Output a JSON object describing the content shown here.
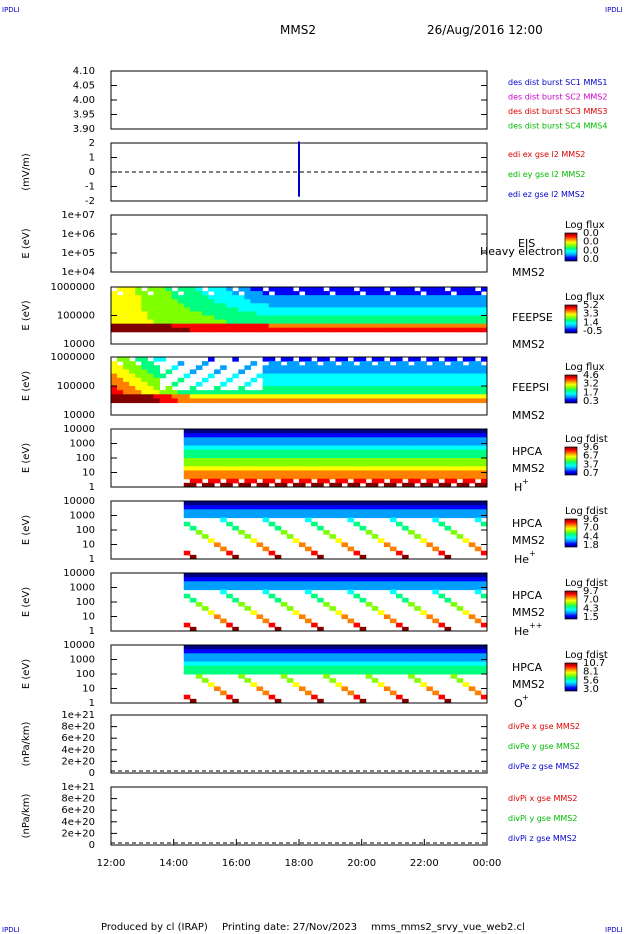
{
  "corner_labels": {
    "top_left": "IPDLI",
    "top_right": "IPDLI",
    "bottom_left": "IPDLI",
    "bottom_right": "IPDLI"
  },
  "header": {
    "mission": "MMS2",
    "datetime": "26/Aug/2016 12:00"
  },
  "footer": {
    "produced_by": "Produced by cl (IRAP)",
    "print_date": "Printing date: 27/Nov/2023",
    "script": "mms_mms2_srvy_vue_web2.cl"
  },
  "colors": {
    "blue": "#0000cc",
    "red": "#dd0000",
    "green": "#00bb00",
    "magenta": "#cc00cc",
    "dashed": "#000000"
  },
  "colorbar_stops": [
    "#000080",
    "#0000ff",
    "#00a0ff",
    "#00ffff",
    "#00ff80",
    "#80ff00",
    "#ffff00",
    "#ff8000",
    "#ff0000",
    "#800000"
  ],
  "chart_data": [
    {
      "id": "panel-ephem",
      "type": "line",
      "ylabel": "",
      "ytick_labels": [
        "4.10",
        "4.05",
        "4.00",
        "3.95",
        "3.90"
      ],
      "ylim": [
        3.9,
        4.1
      ],
      "legend": [
        {
          "text": "des dist burst SC1 MMS1",
          "color": "#0000cc"
        },
        {
          "text": "des dist burst SC2 MMS2",
          "color": "#cc00cc"
        },
        {
          "text": "des dist burst SC3 MMS3",
          "color": "#dd0000"
        },
        {
          "text": "des dist burst SC4 MMS4",
          "color": "#00bb00"
        }
      ],
      "series": []
    },
    {
      "id": "panel-efield",
      "type": "line",
      "ylabel": "(mV/m)",
      "ytick_labels": [
        "2",
        "1",
        "0",
        "-1",
        "-2"
      ],
      "ylim": [
        -2,
        2
      ],
      "zero_line": true,
      "legend": [
        {
          "text": "edi ex gse l2 MMS2",
          "color": "#dd0000"
        },
        {
          "text": "edi ey gse l2 MMS2",
          "color": "#00bb00"
        },
        {
          "text": "edi ez gse l2 MMS2",
          "color": "#0000cc"
        }
      ],
      "series": [
        {
          "x_hours": 18.0,
          "ymin": -1.7,
          "ymax": 2.1,
          "color": "#0000cc"
        }
      ]
    },
    {
      "id": "panel-eis",
      "type": "heatmap",
      "ylabel": "E (eV)",
      "ytick_labels": [
        "1e+07",
        "1e+06",
        "1e+05",
        "1e+04"
      ],
      "instrument": "EIS",
      "overlay_text": "Heavy electron to",
      "spacecraft": "MMS2",
      "colorbar_title": "Log flux",
      "colorbar_ticks": [
        "0.0",
        "0.0",
        "0.0",
        "0.0"
      ]
    },
    {
      "id": "panel-feepse",
      "type": "heatmap",
      "ylabel": "E (eV)",
      "ytick_labels": [
        "1000000",
        "100000",
        "10000"
      ],
      "instrument": "FEEPSE",
      "spacecraft": "MMS2",
      "colorbar_title": "Log flux",
      "colorbar_ticks": [
        "5.2",
        "3.3",
        "1.4",
        "-0.5"
      ]
    },
    {
      "id": "panel-feepsi",
      "type": "heatmap",
      "ylabel": "E (eV)",
      "ytick_labels": [
        "1000000",
        "100000",
        "10000"
      ],
      "instrument": "FEEPSI",
      "spacecraft": "MMS2",
      "colorbar_title": "Log flux",
      "colorbar_ticks": [
        "4.6",
        "3.2",
        "1.7",
        "0.3"
      ]
    },
    {
      "id": "panel-hpca-h",
      "type": "heatmap",
      "ylabel": "E (eV)",
      "ytick_labels": [
        "10000",
        "1000",
        "100",
        "10",
        "1"
      ],
      "instrument": "HPCA",
      "spacecraft": "MMS2",
      "species": "H",
      "species_charge": "+",
      "colorbar_title": "Log fdist",
      "colorbar_ticks": [
        "9.6",
        "6.7",
        "3.7",
        "0.7"
      ]
    },
    {
      "id": "panel-hpca-he",
      "type": "heatmap",
      "ylabel": "E (eV)",
      "ytick_labels": [
        "10000",
        "1000",
        "100",
        "10",
        "1"
      ],
      "instrument": "HPCA",
      "spacecraft": "MMS2",
      "species": "He",
      "species_charge": "+",
      "colorbar_title": "Log fdist",
      "colorbar_ticks": [
        "9.6",
        "7.0",
        "4.4",
        "1.8"
      ]
    },
    {
      "id": "panel-hpca-he2",
      "type": "heatmap",
      "ylabel": "E (eV)",
      "ytick_labels": [
        "10000",
        "1000",
        "100",
        "10",
        "1"
      ],
      "instrument": "HPCA",
      "spacecraft": "MMS2",
      "species": "He",
      "species_charge": "++",
      "colorbar_title": "Log fdist",
      "colorbar_ticks": [
        "9.7",
        "7.0",
        "4.3",
        "1.5"
      ]
    },
    {
      "id": "panel-hpca-o",
      "type": "heatmap",
      "ylabel": "E (eV)",
      "ytick_labels": [
        "10000",
        "1000",
        "100",
        "10",
        "1"
      ],
      "instrument": "HPCA",
      "spacecraft": "MMS2",
      "species": "O",
      "species_charge": "+",
      "colorbar_title": "Log fdist",
      "colorbar_ticks": [
        "10.7",
        "8.1",
        "5.6",
        "3.0"
      ]
    },
    {
      "id": "panel-divpe",
      "type": "line",
      "ylabel": "(nPa/km)",
      "ytick_labels": [
        "1e+21",
        "8e+20",
        "6e+20",
        "4e+20",
        "2e+20",
        "0"
      ],
      "ylim": [
        0,
        1e+21
      ],
      "zero_line": true,
      "legend": [
        {
          "text": "divPe x gse MMS2",
          "color": "#dd0000"
        },
        {
          "text": "divPe y gse MMS2",
          "color": "#00bb00"
        },
        {
          "text": "divPe z gse MMS2",
          "color": "#0000cc"
        }
      ],
      "series": []
    },
    {
      "id": "panel-divpi",
      "type": "line",
      "ylabel": "(nPa/km)",
      "ytick_labels": [
        "1e+21",
        "8e+20",
        "6e+20",
        "4e+20",
        "2e+20",
        "0"
      ],
      "ylim": [
        0,
        1e+21
      ],
      "zero_line": true,
      "legend": [
        {
          "text": "divPi x gse MMS2",
          "color": "#dd0000"
        },
        {
          "text": "divPi y gse MMS2",
          "color": "#00bb00"
        },
        {
          "text": "divPi z gse MMS2",
          "color": "#0000cc"
        }
      ],
      "series": []
    }
  ],
  "xaxis": {
    "tick_labels": [
      "12:00",
      "14:00",
      "16:00",
      "18:00",
      "20:00",
      "22:00",
      "00:00"
    ],
    "range_hours": [
      12,
      24
    ]
  }
}
